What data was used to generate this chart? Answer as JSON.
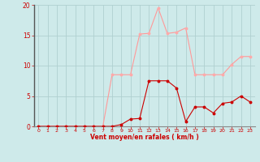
{
  "title": "",
  "xlabel": "Vent moyen/en rafales ( km/h )",
  "background_color": "#ceeaea",
  "grid_color": "#b0d0d0",
  "x_values": [
    0,
    1,
    2,
    3,
    4,
    5,
    6,
    7,
    8,
    9,
    10,
    11,
    12,
    13,
    14,
    15,
    16,
    17,
    18,
    19,
    20,
    21,
    22,
    23
  ],
  "y_mean": [
    0,
    0,
    0,
    0,
    0,
    0,
    0,
    0,
    0,
    0.3,
    1.2,
    1.3,
    7.5,
    7.5,
    7.5,
    6.3,
    0.8,
    3.2,
    3.2,
    2.2,
    3.8,
    4.0,
    5.0,
    4.0
  ],
  "y_gust": [
    0,
    0,
    0,
    0,
    0,
    0,
    0,
    0,
    8.5,
    8.5,
    8.5,
    15.2,
    15.3,
    19.5,
    15.3,
    15.5,
    16.2,
    8.5,
    8.5,
    8.5,
    8.5,
    10.2,
    11.5,
    11.5
  ],
  "ylim": [
    0,
    20
  ],
  "yticks": [
    0,
    5,
    10,
    15,
    20
  ],
  "xlim": [
    -0.5,
    23.5
  ],
  "line_color_mean": "#cc0000",
  "line_color_gust": "#ff9999",
  "marker_color_mean": "#cc0000",
  "marker_color_gust": "#ffaaaa",
  "xlabel_color": "#cc0000",
  "tick_color": "#cc0000",
  "axis_color": "#888888",
  "left_spine_color": "#555555"
}
